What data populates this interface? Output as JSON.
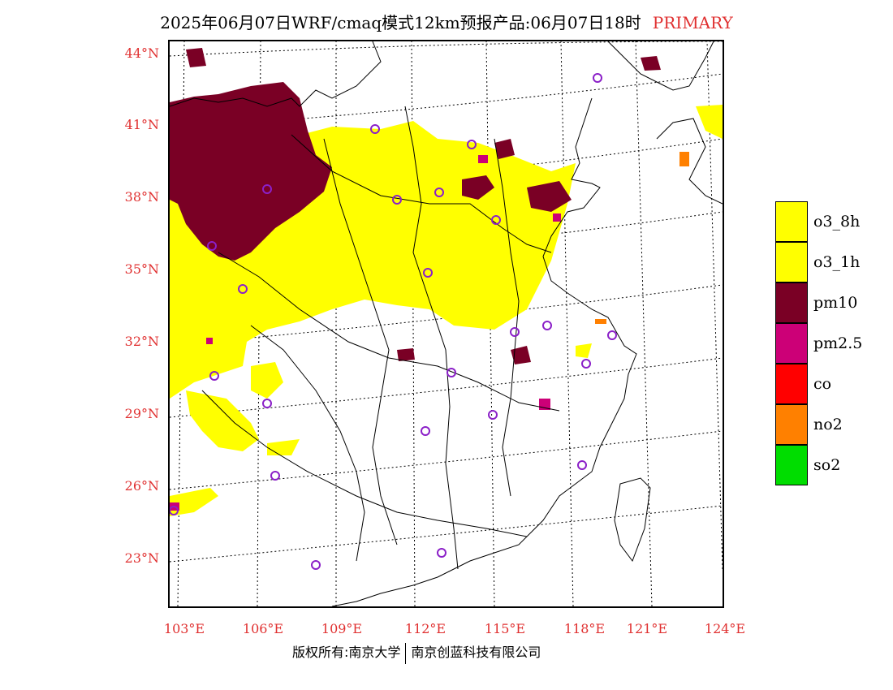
{
  "header": {
    "title": "2025年06月07日WRF/cmaq模式12km预报产品:06月07日18时",
    "tag": "PRIMARY"
  },
  "axes": {
    "lat_labels": [
      "44°N",
      "41°N",
      "38°N",
      "35°N",
      "32°N",
      "29°N",
      "26°N",
      "23°N"
    ],
    "lon_labels": [
      "103°E",
      "106°E",
      "109°E",
      "112°E",
      "115°E",
      "118°E",
      "121°E",
      "124°E"
    ]
  },
  "legend": {
    "items": [
      {
        "label": "o3_8h",
        "color": "#ffff00"
      },
      {
        "label": "o3_1h",
        "color": "#ffff00"
      },
      {
        "label": "pm10",
        "color": "#7a0025"
      },
      {
        "label": "pm2.5",
        "color": "#cc0077"
      },
      {
        "label": "co",
        "color": "#ff0000"
      },
      {
        "label": "no2",
        "color": "#ff8000"
      },
      {
        "label": "so2",
        "color": "#00dd00"
      }
    ]
  },
  "footer": {
    "left": "版权所有:南京大学",
    "right": "南京创蓝科技有限公司"
  },
  "colors": {
    "accent": "#e03030",
    "station_marker": "#8b20c8"
  }
}
